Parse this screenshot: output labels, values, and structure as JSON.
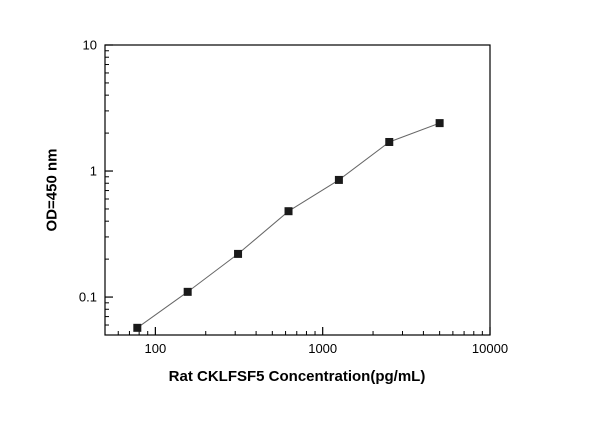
{
  "chart_data": {
    "type": "scatter",
    "title": "",
    "xlabel": "Rat CKLFSF5 Concentration(pg/mL)",
    "ylabel": "OD=450 nm",
    "x_scale": "log",
    "y_scale": "log",
    "xlim": [
      50,
      10000
    ],
    "ylim": [
      0.05,
      10
    ],
    "x_ticks": [
      100,
      1000,
      10000
    ],
    "y_ticks": [
      0.1,
      1,
      10
    ],
    "x": [
      78,
      156,
      312,
      625,
      1250,
      2500,
      5000
    ],
    "y": [
      0.057,
      0.11,
      0.22,
      0.48,
      0.85,
      1.7,
      2.4
    ],
    "grid": false,
    "legend": null,
    "marker": "filled-square",
    "marker_color": "#1a1a1a",
    "line_color": "#666666",
    "frame_color": "#000000"
  }
}
